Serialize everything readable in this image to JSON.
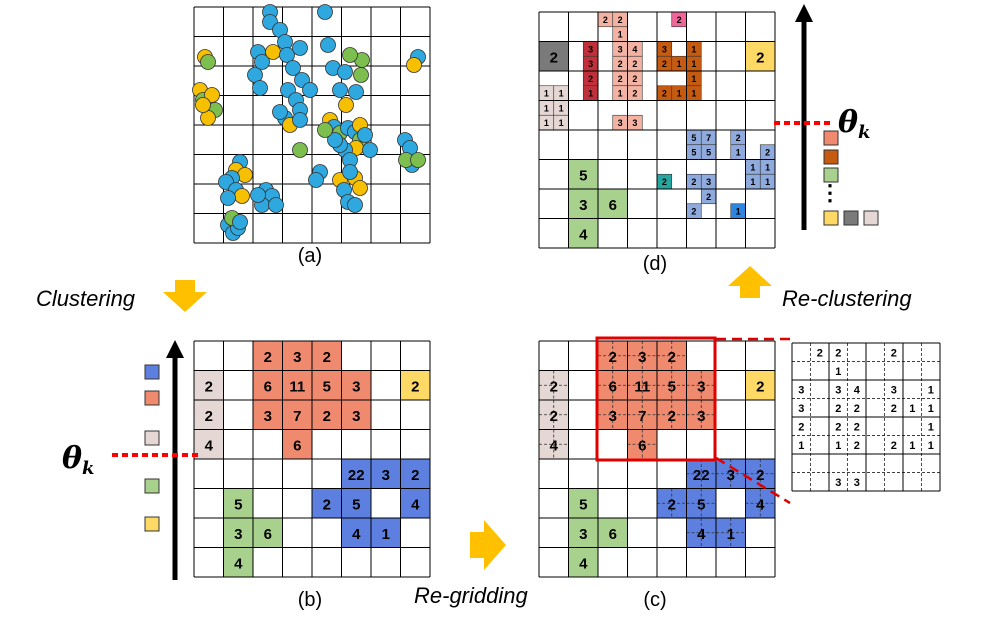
{
  "panels": {
    "a": {
      "label": "(a)"
    },
    "b": {
      "label": "(b)"
    },
    "c": {
      "label": "(c)"
    },
    "d": {
      "label": "(d)"
    }
  },
  "arrows": {
    "clustering": "Clustering",
    "regridding": "Re-gridding",
    "reclustering": "Re-clustering"
  },
  "threshold_label": "θ",
  "threshold_sub": "k",
  "ellipsis": "⋮",
  "colors": {
    "blue": "#2ea8df",
    "yellow": "#f6c000",
    "green": "#7cbf4f",
    "salmon": "#ef8a6f",
    "periwinkle": "#5c7fe0",
    "beige": "#e5d7d3",
    "gold": "#ffd966",
    "sage": "#a9d18e",
    "dark_red": "#c0303a",
    "orange_brown": "#c55a11",
    "gray": "#7a7a7a",
    "light_salmon": "#f4b2a2",
    "light_blue": "#8faadc",
    "teal": "#27a5a0",
    "pink": "#f06699",
    "vivid_blue": "#2e86e0",
    "threshold": "#ff0000",
    "arrow_fill": "#ffc000"
  },
  "panel_b_cells": [
    {
      "r": 0,
      "c": 2,
      "v": "2",
      "k": "salmon"
    },
    {
      "r": 0,
      "c": 3,
      "v": "3",
      "k": "salmon"
    },
    {
      "r": 0,
      "c": 4,
      "v": "2",
      "k": "salmon"
    },
    {
      "r": 1,
      "c": 0,
      "v": "2",
      "k": "beige"
    },
    {
      "r": 1,
      "c": 2,
      "v": "6",
      "k": "salmon"
    },
    {
      "r": 1,
      "c": 3,
      "v": "11",
      "k": "salmon"
    },
    {
      "r": 1,
      "c": 4,
      "v": "5",
      "k": "salmon"
    },
    {
      "r": 1,
      "c": 5,
      "v": "3",
      "k": "salmon"
    },
    {
      "r": 1,
      "c": 7,
      "v": "2",
      "k": "gold"
    },
    {
      "r": 2,
      "c": 0,
      "v": "2",
      "k": "beige"
    },
    {
      "r": 2,
      "c": 2,
      "v": "3",
      "k": "salmon"
    },
    {
      "r": 2,
      "c": 3,
      "v": "7",
      "k": "salmon"
    },
    {
      "r": 2,
      "c": 4,
      "v": "2",
      "k": "salmon"
    },
    {
      "r": 2,
      "c": 5,
      "v": "3",
      "k": "salmon"
    },
    {
      "r": 3,
      "c": 0,
      "v": "4",
      "k": "beige"
    },
    {
      "r": 3,
      "c": 3,
      "v": "6",
      "k": "salmon"
    },
    {
      "r": 4,
      "c": 5,
      "v": "22",
      "k": "periwinkle"
    },
    {
      "r": 4,
      "c": 6,
      "v": "3",
      "k": "periwinkle"
    },
    {
      "r": 4,
      "c": 7,
      "v": "2",
      "k": "periwinkle"
    },
    {
      "r": 5,
      "c": 1,
      "v": "5",
      "k": "sage"
    },
    {
      "r": 5,
      "c": 4,
      "v": "2",
      "k": "periwinkle"
    },
    {
      "r": 5,
      "c": 5,
      "v": "5",
      "k": "periwinkle"
    },
    {
      "r": 5,
      "c": 7,
      "v": "4",
      "k": "periwinkle"
    },
    {
      "r": 6,
      "c": 1,
      "v": "3",
      "k": "sage"
    },
    {
      "r": 6,
      "c": 2,
      "v": "6",
      "k": "sage"
    },
    {
      "r": 6,
      "c": 5,
      "v": "4",
      "k": "periwinkle"
    },
    {
      "r": 6,
      "c": 6,
      "v": "1",
      "k": "periwinkle"
    },
    {
      "r": 7,
      "c": 1,
      "v": "4",
      "k": "sage"
    }
  ],
  "panel_d_cells": [
    {
      "r": 0,
      "c": 4,
      "v": "2",
      "k": "light_salmon"
    },
    {
      "r": 0,
      "c": 5,
      "v": "2",
      "k": "light_salmon"
    },
    {
      "r": 0,
      "c": 9,
      "v": "2",
      "k": "pink"
    },
    {
      "r": 1,
      "c": 5,
      "v": "1",
      "k": "light_salmon"
    },
    {
      "r": 2,
      "c": 3,
      "v": "3",
      "k": "dark_red"
    },
    {
      "r": 2,
      "c": 5,
      "v": "3",
      "k": "light_salmon"
    },
    {
      "r": 2,
      "c": 6,
      "v": "4",
      "k": "light_salmon"
    },
    {
      "r": 2,
      "c": 8,
      "v": "3",
      "k": "orange_brown"
    },
    {
      "r": 2,
      "c": 10,
      "v": "1",
      "k": "orange_brown"
    },
    {
      "r": 3,
      "c": 3,
      "v": "3",
      "k": "dark_red"
    },
    {
      "r": 3,
      "c": 5,
      "v": "2",
      "k": "light_salmon"
    },
    {
      "r": 3,
      "c": 6,
      "v": "2",
      "k": "light_salmon"
    },
    {
      "r": 3,
      "c": 8,
      "v": "2",
      "k": "orange_brown"
    },
    {
      "r": 3,
      "c": 9,
      "v": "1",
      "k": "orange_brown"
    },
    {
      "r": 3,
      "c": 10,
      "v": "1",
      "k": "orange_brown"
    },
    {
      "r": 4,
      "c": 3,
      "v": "2",
      "k": "dark_red"
    },
    {
      "r": 4,
      "c": 5,
      "v": "2",
      "k": "light_salmon"
    },
    {
      "r": 4,
      "c": 6,
      "v": "2",
      "k": "light_salmon"
    },
    {
      "r": 4,
      "c": 10,
      "v": "1",
      "k": "orange_brown"
    },
    {
      "r": 5,
      "c": 0,
      "v": "1",
      "k": "beige"
    },
    {
      "r": 5,
      "c": 1,
      "v": "1",
      "k": "beige"
    },
    {
      "r": 5,
      "c": 3,
      "v": "1",
      "k": "dark_red"
    },
    {
      "r": 5,
      "c": 5,
      "v": "1",
      "k": "light_salmon"
    },
    {
      "r": 5,
      "c": 6,
      "v": "2",
      "k": "light_salmon"
    },
    {
      "r": 5,
      "c": 8,
      "v": "2",
      "k": "orange_brown"
    },
    {
      "r": 5,
      "c": 9,
      "v": "1",
      "k": "orange_brown"
    },
    {
      "r": 5,
      "c": 10,
      "v": "1",
      "k": "orange_brown"
    },
    {
      "r": 6,
      "c": 0,
      "v": "1",
      "k": "beige"
    },
    {
      "r": 6,
      "c": 1,
      "v": "1",
      "k": "beige"
    },
    {
      "r": 7,
      "c": 0,
      "v": "1",
      "k": "beige"
    },
    {
      "r": 7,
      "c": 1,
      "v": "1",
      "k": "beige"
    },
    {
      "r": 7,
      "c": 5,
      "v": "3",
      "k": "light_salmon"
    },
    {
      "r": 7,
      "c": 6,
      "v": "3",
      "k": "light_salmon"
    },
    {
      "r": 8,
      "c": 10,
      "v": "5",
      "k": "light_blue"
    },
    {
      "r": 8,
      "c": 11,
      "v": "7",
      "k": "light_blue"
    },
    {
      "r": 8,
      "c": 13,
      "v": "2",
      "k": "light_blue"
    },
    {
      "r": 9,
      "c": 10,
      "v": "5",
      "k": "light_blue"
    },
    {
      "r": 9,
      "c": 11,
      "v": "5",
      "k": "light_blue"
    },
    {
      "r": 9,
      "c": 13,
      "v": "1",
      "k": "light_blue"
    },
    {
      "r": 9,
      "c": 15,
      "v": "2",
      "k": "light_blue"
    },
    {
      "r": 10,
      "c": 14,
      "v": "1",
      "k": "light_blue"
    },
    {
      "r": 10,
      "c": 15,
      "v": "1",
      "k": "light_blue"
    },
    {
      "r": 11,
      "c": 8,
      "v": "2",
      "k": "teal"
    },
    {
      "r": 11,
      "c": 10,
      "v": "2",
      "k": "light_blue"
    },
    {
      "r": 11,
      "c": 11,
      "v": "3",
      "k": "light_blue"
    },
    {
      "r": 11,
      "c": 14,
      "v": "1",
      "k": "light_blue"
    },
    {
      "r": 11,
      "c": 15,
      "v": "1",
      "k": "light_blue"
    },
    {
      "r": 12,
      "c": 11,
      "v": "2",
      "k": "light_blue"
    },
    {
      "r": 13,
      "c": 10,
      "v": "2",
      "k": "light_blue"
    },
    {
      "r": 13,
      "c": 13,
      "v": "1",
      "k": "vivid_blue"
    }
  ],
  "panel_d_big_cells": [
    {
      "r": 1,
      "c": 0,
      "v": "2",
      "k": "gray"
    },
    {
      "r": 1,
      "c": 7,
      "v": "2",
      "k": "gold"
    },
    {
      "r": 5,
      "c": 1,
      "v": "5",
      "k": "sage"
    },
    {
      "r": 6,
      "c": 1,
      "v": "3",
      "k": "sage"
    },
    {
      "r": 6,
      "c": 2,
      "v": "6",
      "k": "sage"
    },
    {
      "r": 7,
      "c": 1,
      "v": "4",
      "k": "sage"
    }
  ],
  "zoom_cells": [
    {
      "r": 0,
      "c": 1,
      "v": "2"
    },
    {
      "r": 0,
      "c": 2,
      "v": "2"
    },
    {
      "r": 0,
      "c": 5,
      "v": "2"
    },
    {
      "r": 1,
      "c": 2,
      "v": "1"
    },
    {
      "r": 2,
      "c": 0,
      "v": "3"
    },
    {
      "r": 2,
      "c": 2,
      "v": "3"
    },
    {
      "r": 2,
      "c": 3,
      "v": "4"
    },
    {
      "r": 2,
      "c": 5,
      "v": "3"
    },
    {
      "r": 2,
      "c": 7,
      "v": "1"
    },
    {
      "r": 3,
      "c": 0,
      "v": "3"
    },
    {
      "r": 3,
      "c": 2,
      "v": "2"
    },
    {
      "r": 3,
      "c": 3,
      "v": "2"
    },
    {
      "r": 3,
      "c": 5,
      "v": "2"
    },
    {
      "r": 3,
      "c": 6,
      "v": "1"
    },
    {
      "r": 3,
      "c": 7,
      "v": "1"
    },
    {
      "r": 4,
      "c": 0,
      "v": "2"
    },
    {
      "r": 4,
      "c": 2,
      "v": "2"
    },
    {
      "r": 4,
      "c": 3,
      "v": "2"
    },
    {
      "r": 4,
      "c": 7,
      "v": "1"
    },
    {
      "r": 5,
      "c": 0,
      "v": "1"
    },
    {
      "r": 5,
      "c": 2,
      "v": "1"
    },
    {
      "r": 5,
      "c": 3,
      "v": "2"
    },
    {
      "r": 5,
      "c": 5,
      "v": "2"
    },
    {
      "r": 5,
      "c": 6,
      "v": "1"
    },
    {
      "r": 5,
      "c": 7,
      "v": "1"
    },
    {
      "r": 7,
      "c": 2,
      "v": "3"
    },
    {
      "r": 7,
      "c": 3,
      "v": "3"
    }
  ],
  "scale_b_swatches": [
    "periwinkle",
    "salmon",
    "beige",
    "sage",
    "gold"
  ],
  "scale_d_swatches": [
    "salmon",
    "orange_brown",
    "sage"
  ],
  "scale_d_bottom_swatches": [
    "gold",
    "gray",
    "beige"
  ]
}
